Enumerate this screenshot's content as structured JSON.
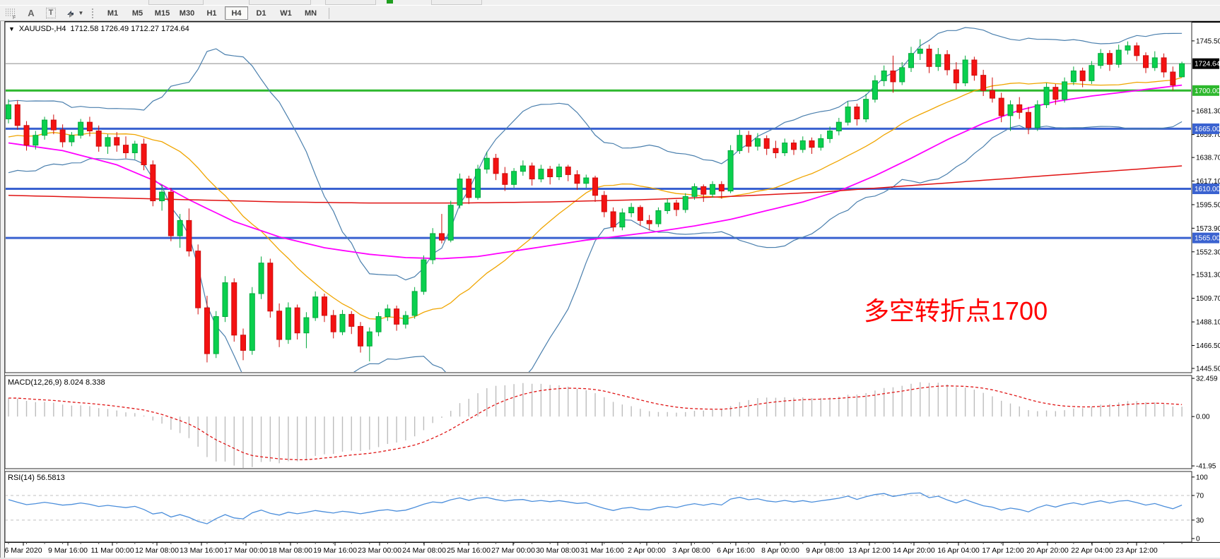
{
  "toolbar": {
    "tools": [
      {
        "name": "fibonacci-tool",
        "glyph": "F"
      },
      {
        "name": "text-label-tool",
        "glyph": "A"
      },
      {
        "name": "text-tool",
        "glyph": "T"
      },
      {
        "name": "arrow-tools",
        "glyph": "arrows"
      }
    ],
    "timeframes": [
      {
        "label": "M1",
        "active": false
      },
      {
        "label": "M5",
        "active": false
      },
      {
        "label": "M15",
        "active": false
      },
      {
        "label": "M30",
        "active": false
      },
      {
        "label": "H1",
        "active": false
      },
      {
        "label": "H4",
        "active": true
      },
      {
        "label": "D1",
        "active": false
      },
      {
        "label": "W1",
        "active": false
      },
      {
        "label": "MN",
        "active": false
      }
    ]
  },
  "chart": {
    "symbol_period": "XAUUSD-,H4",
    "ohlc_display": "1712.58 1726.49 1712.27 1724.64",
    "annotation": {
      "text": "多空转折点1700",
      "color": "#ff0000"
    },
    "last_price": "1724.64"
  },
  "chart_data": [
    {
      "type": "candlestick",
      "title": "XAUUSD-,H4",
      "ylim": [
        1762.9,
        1441.6
      ],
      "y_ticks": [
        1745.5,
        1681.3,
        1659.7,
        1638.7,
        1617.1,
        1595.5,
        1573.9,
        1552.3,
        1531.3,
        1509.7,
        1488.1,
        1466.5,
        1445.5
      ],
      "badges": [
        {
          "price": 1724.64,
          "text": "1724.64",
          "color": "#000000"
        },
        {
          "price": 1700.0,
          "text": "1700.00",
          "color": "#2db82d"
        },
        {
          "price": 1665.0,
          "text": "1665.00",
          "color": "#3a62d0"
        },
        {
          "price": 1610.0,
          "text": "1610.00",
          "color": "#3a62d0"
        },
        {
          "price": 1565.0,
          "text": "1565.00",
          "color": "#3a62d0"
        }
      ],
      "hlines": [
        {
          "price": 1724.64,
          "color": "#8b8b8b",
          "width": 1
        },
        {
          "price": 1700.0,
          "color": "#2db82d",
          "width": 3
        },
        {
          "price": 1665.0,
          "color": "#3a62d0",
          "width": 3
        },
        {
          "price": 1610.0,
          "color": "#3a62d0",
          "width": 3
        },
        {
          "price": 1565.0,
          "color": "#3a62d0",
          "width": 3
        }
      ],
      "x_labels": [
        "6 Mar 2020",
        "9 Mar 16:00",
        "11 Mar 00:00",
        "12 Mar 08:00",
        "13 Mar 16:00",
        "17 Mar 00:00",
        "18 Mar 08:00",
        "19 Mar 16:00",
        "23 Mar 00:00",
        "24 Mar 08:00",
        "25 Mar 16:00",
        "27 Mar 00:00",
        "30 Mar 08:00",
        "31 Mar 16:00",
        "2 Apr 00:00",
        "3 Apr 08:00",
        "6 Apr 16:00",
        "8 Apr 00:00",
        "9 Apr 08:00",
        "13 Apr 12:00",
        "14 Apr 20:00",
        "16 Apr 04:00",
        "17 Apr 12:00",
        "20 Apr 20:00",
        "22 Apr 04:00",
        "23 Apr 12:00"
      ],
      "up_color": "#0ad04e",
      "up_border": "#04a93d",
      "down_color": "#f31212",
      "down_border": "#cf0d0d",
      "candles": [
        [
          1674,
          1692,
          1670,
          1687
        ],
        [
          1687,
          1691,
          1664,
          1668
        ],
        [
          1668,
          1672,
          1645,
          1650
        ],
        [
          1650,
          1663,
          1646,
          1659
        ],
        [
          1659,
          1676,
          1655,
          1673
        ],
        [
          1673,
          1678,
          1660,
          1664
        ],
        [
          1664,
          1669,
          1648,
          1653
        ],
        [
          1653,
          1662,
          1649,
          1659
        ],
        [
          1659,
          1674,
          1656,
          1671
        ],
        [
          1671,
          1676,
          1658,
          1663
        ],
        [
          1663,
          1668,
          1644,
          1649
        ],
        [
          1649,
          1660,
          1642,
          1657
        ],
        [
          1657,
          1662,
          1644,
          1650
        ],
        [
          1650,
          1658,
          1638,
          1643
        ],
        [
          1643,
          1654,
          1637,
          1651
        ],
        [
          1651,
          1656,
          1627,
          1632
        ],
        [
          1632,
          1636,
          1594,
          1599
        ],
        [
          1599,
          1614,
          1590,
          1607
        ],
        [
          1607,
          1611,
          1562,
          1567
        ],
        [
          1567,
          1587,
          1556,
          1581
        ],
        [
          1581,
          1592,
          1548,
          1553
        ],
        [
          1553,
          1559,
          1495,
          1501
        ],
        [
          1501,
          1512,
          1451,
          1459
        ],
        [
          1459,
          1498,
          1455,
          1493
        ],
        [
          1493,
          1530,
          1488,
          1524
        ],
        [
          1524,
          1528,
          1470,
          1476
        ],
        [
          1476,
          1482,
          1453,
          1462
        ],
        [
          1462,
          1520,
          1458,
          1514
        ],
        [
          1514,
          1548,
          1509,
          1542
        ],
        [
          1542,
          1546,
          1492,
          1498
        ],
        [
          1498,
          1505,
          1465,
          1472
        ],
        [
          1472,
          1506,
          1468,
          1501
        ],
        [
          1501,
          1504,
          1472,
          1478
        ],
        [
          1478,
          1497,
          1464,
          1492
        ],
        [
          1492,
          1516,
          1489,
          1511
        ],
        [
          1511,
          1514,
          1488,
          1494
        ],
        [
          1494,
          1499,
          1473,
          1479
        ],
        [
          1479,
          1499,
          1476,
          1495
        ],
        [
          1495,
          1498,
          1477,
          1484
        ],
        [
          1484,
          1488,
          1460,
          1466
        ],
        [
          1466,
          1483,
          1452,
          1479
        ],
        [
          1479,
          1497,
          1475,
          1493
        ],
        [
          1493,
          1504,
          1489,
          1500
        ],
        [
          1500,
          1503,
          1480,
          1486
        ],
        [
          1486,
          1498,
          1482,
          1494
        ],
        [
          1494,
          1520,
          1491,
          1516
        ],
        [
          1516,
          1549,
          1513,
          1545
        ],
        [
          1545,
          1574,
          1541,
          1569
        ],
        [
          1569,
          1587,
          1560,
          1563
        ],
        [
          1563,
          1599,
          1561,
          1595
        ],
        [
          1595,
          1624,
          1592,
          1619
        ],
        [
          1619,
          1622,
          1596,
          1602
        ],
        [
          1602,
          1632,
          1600,
          1628
        ],
        [
          1628,
          1644,
          1624,
          1638
        ],
        [
          1638,
          1642,
          1618,
          1624
        ],
        [
          1624,
          1630,
          1608,
          1614
        ],
        [
          1614,
          1629,
          1611,
          1626
        ],
        [
          1626,
          1636,
          1622,
          1631
        ],
        [
          1631,
          1634,
          1613,
          1619
        ],
        [
          1619,
          1632,
          1616,
          1628
        ],
        [
          1628,
          1631,
          1614,
          1621
        ],
        [
          1621,
          1633,
          1618,
          1630
        ],
        [
          1630,
          1632,
          1617,
          1623
        ],
        [
          1623,
          1627,
          1609,
          1615
        ],
        [
          1615,
          1623,
          1611,
          1620
        ],
        [
          1620,
          1622,
          1598,
          1604
        ],
        [
          1604,
          1608,
          1584,
          1589
        ],
        [
          1589,
          1593,
          1571,
          1575
        ],
        [
          1575,
          1592,
          1572,
          1588
        ],
        [
          1588,
          1597,
          1584,
          1593
        ],
        [
          1593,
          1595,
          1576,
          1581
        ],
        [
          1581,
          1586,
          1572,
          1578
        ],
        [
          1578,
          1593,
          1575,
          1590
        ],
        [
          1590,
          1601,
          1587,
          1597
        ],
        [
          1597,
          1600,
          1585,
          1591
        ],
        [
          1591,
          1606,
          1588,
          1603
        ],
        [
          1603,
          1615,
          1600,
          1612
        ],
        [
          1612,
          1614,
          1598,
          1605
        ],
        [
          1605,
          1617,
          1602,
          1614
        ],
        [
          1614,
          1617,
          1601,
          1608
        ],
        [
          1608,
          1650,
          1606,
          1645
        ],
        [
          1645,
          1664,
          1642,
          1659
        ],
        [
          1659,
          1663,
          1643,
          1649
        ],
        [
          1649,
          1661,
          1645,
          1656
        ],
        [
          1656,
          1659,
          1641,
          1647
        ],
        [
          1647,
          1654,
          1638,
          1643
        ],
        [
          1643,
          1656,
          1640,
          1652
        ],
        [
          1652,
          1655,
          1641,
          1646
        ],
        [
          1646,
          1658,
          1643,
          1654
        ],
        [
          1654,
          1657,
          1642,
          1648
        ],
        [
          1648,
          1660,
          1645,
          1656
        ],
        [
          1656,
          1667,
          1652,
          1663
        ],
        [
          1663,
          1675,
          1659,
          1671
        ],
        [
          1671,
          1690,
          1668,
          1685
        ],
        [
          1685,
          1688,
          1668,
          1674
        ],
        [
          1674,
          1697,
          1671,
          1692
        ],
        [
          1692,
          1714,
          1689,
          1709
        ],
        [
          1709,
          1723,
          1704,
          1718
        ],
        [
          1718,
          1732,
          1698,
          1708
        ],
        [
          1708,
          1726,
          1705,
          1721
        ],
        [
          1721,
          1740,
          1717,
          1734
        ],
        [
          1734,
          1747,
          1728,
          1738
        ],
        [
          1738,
          1742,
          1716,
          1722
        ],
        [
          1722,
          1739,
          1718,
          1733
        ],
        [
          1733,
          1737,
          1714,
          1719
        ],
        [
          1719,
          1726,
          1701,
          1707
        ],
        [
          1707,
          1732,
          1704,
          1728
        ],
        [
          1728,
          1731,
          1709,
          1714
        ],
        [
          1714,
          1719,
          1695,
          1700
        ],
        [
          1700,
          1712,
          1689,
          1693
        ],
        [
          1693,
          1698,
          1671,
          1677
        ],
        [
          1677,
          1691,
          1663,
          1687
        ],
        [
          1687,
          1694,
          1674,
          1680
        ],
        [
          1680,
          1685,
          1660,
          1666
        ],
        [
          1666,
          1691,
          1663,
          1687
        ],
        [
          1687,
          1707,
          1684,
          1703
        ],
        [
          1703,
          1706,
          1687,
          1692
        ],
        [
          1692,
          1712,
          1689,
          1708
        ],
        [
          1708,
          1722,
          1705,
          1718
        ],
        [
          1718,
          1721,
          1703,
          1709
        ],
        [
          1709,
          1727,
          1706,
          1723
        ],
        [
          1723,
          1738,
          1720,
          1734
        ],
        [
          1734,
          1737,
          1718,
          1724
        ],
        [
          1724,
          1742,
          1721,
          1737
        ],
        [
          1737,
          1745,
          1733,
          1741
        ],
        [
          1741,
          1744,
          1727,
          1732
        ],
        [
          1732,
          1735,
          1716,
          1721
        ],
        [
          1721,
          1736,
          1718,
          1730
        ],
        [
          1730,
          1734,
          1712,
          1717
        ],
        [
          1717,
          1722,
          1700,
          1705
        ],
        [
          1712.58,
          1726.49,
          1712.27,
          1724.64
        ]
      ],
      "bollinger": {
        "period": 20,
        "deviation": 2,
        "color": "#4a7fad",
        "mid_color": "#f0a500",
        "seed": [
          1586,
          1640,
          1665,
          1652,
          1630,
          1645,
          1672,
          1690,
          1660,
          1636,
          1648,
          1670,
          1655,
          1640,
          1662,
          1678,
          1650,
          1642,
          1658,
          1670
        ]
      },
      "ma_lines": [
        {
          "name": "ma-magenta",
          "color": "#ff00ff",
          "width": 1.8,
          "points": [
            [
              0,
              1652
            ],
            [
              6,
              1645
            ],
            [
              12,
              1632
            ],
            [
              16,
              1618
            ],
            [
              20,
              1600
            ],
            [
              25,
              1580
            ],
            [
              30,
              1566
            ],
            [
              35,
              1556
            ],
            [
              40,
              1550
            ],
            [
              44,
              1547
            ],
            [
              48,
              1546
            ],
            [
              52,
              1548
            ],
            [
              56,
              1553
            ],
            [
              60,
              1558
            ],
            [
              64,
              1563
            ],
            [
              68,
              1567
            ],
            [
              72,
              1571
            ],
            [
              76,
              1576
            ],
            [
              80,
              1582
            ],
            [
              84,
              1590
            ],
            [
              88,
              1598
            ],
            [
              92,
              1608
            ],
            [
              96,
              1622
            ],
            [
              100,
              1638
            ],
            [
              104,
              1655
            ],
            [
              108,
              1670
            ],
            [
              112,
              1682
            ],
            [
              116,
              1690
            ],
            [
              120,
              1695
            ],
            [
              124,
              1699
            ],
            [
              127,
              1702
            ],
            [
              130,
              1705
            ]
          ]
        },
        {
          "name": "ma-red",
          "color": "#e01212",
          "width": 1.5,
          "points": [
            [
              0,
              1604
            ],
            [
              10,
              1602
            ],
            [
              20,
              1600
            ],
            [
              30,
              1598
            ],
            [
              40,
              1597
            ],
            [
              50,
              1597
            ],
            [
              60,
              1598
            ],
            [
              70,
              1600
            ],
            [
              80,
              1603
            ],
            [
              90,
              1607
            ],
            [
              95,
              1610
            ],
            [
              100,
              1613
            ],
            [
              105,
              1616
            ],
            [
              110,
              1619
            ],
            [
              115,
              1622
            ],
            [
              120,
              1625
            ],
            [
              125,
              1628
            ],
            [
              130,
              1631
            ]
          ]
        }
      ]
    },
    {
      "type": "bar",
      "label": "MACD(12,26,9) 8.024 8.338",
      "fast": 12,
      "slow": 26,
      "signal": 9,
      "current_macd": 8.024,
      "current_signal": 8.338,
      "histogram_color": "#bdbdbd",
      "signal_color": "#e01616",
      "ylim": [
        34.9,
        -44.3
      ],
      "y_ticks": [
        {
          "v": 32.459,
          "label": "32.459"
        },
        {
          "v": 0,
          "label": "0.00"
        },
        {
          "v": -41.95,
          "label": "-41.95"
        }
      ]
    },
    {
      "type": "line",
      "label": "RSI(14) 56.5813",
      "period": 14,
      "value": 56.5813,
      "color": "#4b8edb",
      "level_color": "#c0c0c0",
      "levels": [
        70,
        30
      ],
      "ylim": [
        109,
        -5.7
      ],
      "y_ticks": [
        {
          "v": 100,
          "label": "100"
        },
        {
          "v": 70,
          "label": "70"
        },
        {
          "v": 30,
          "label": "30"
        },
        {
          "v": 0,
          "label": "0"
        }
      ]
    }
  ]
}
